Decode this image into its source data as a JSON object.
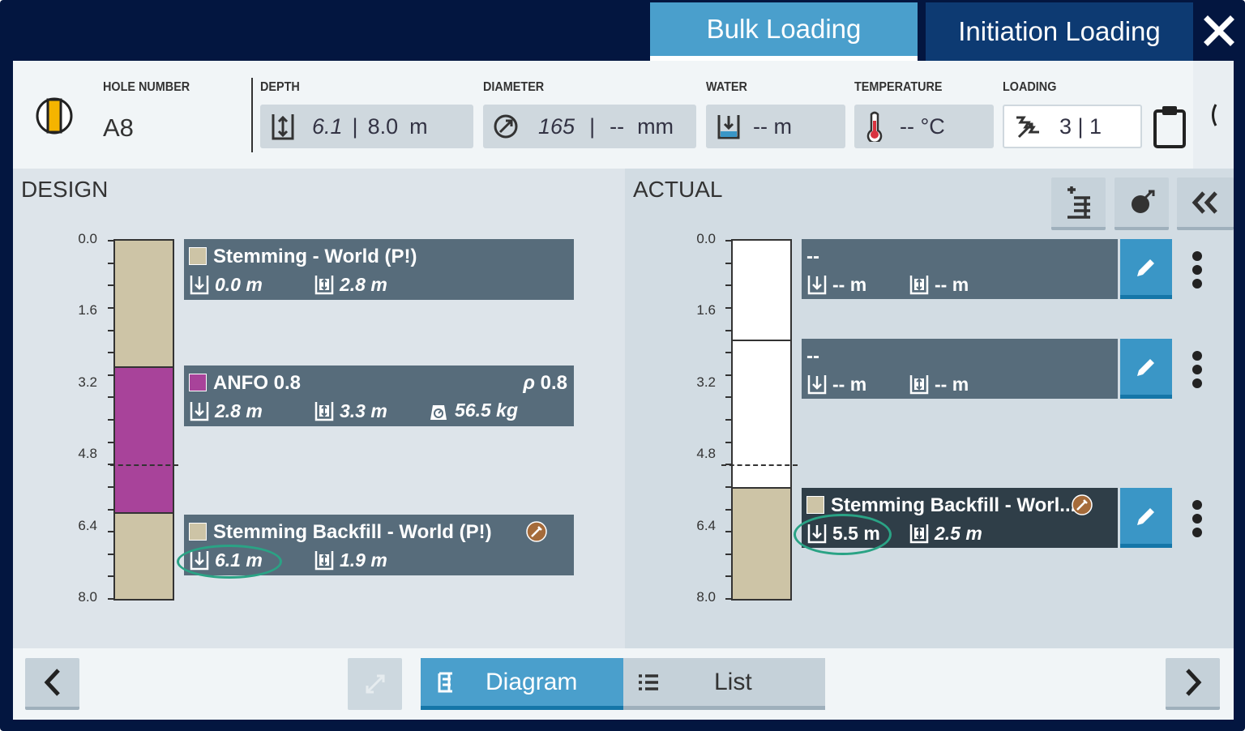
{
  "tabs": {
    "bulk": "Bulk Loading",
    "initiation": "Initiation Loading"
  },
  "header": {
    "hole_label": "HOLE NUMBER",
    "hole_value": "A8",
    "depth_label": "DEPTH",
    "depth_actual": "6.1",
    "depth_sep": "|",
    "depth_design": "8.0",
    "depth_unit": "m",
    "diameter_label": "DIAMETER",
    "diameter_actual": "165",
    "diameter_sep": "|",
    "diameter_design": "--",
    "diameter_unit": "mm",
    "water_label": "WATER",
    "water_value": "-- m",
    "temperature_label": "TEMPERATURE",
    "temperature_value": "-- °C",
    "loading_label": "LOADING",
    "loading_value": "3 | 1"
  },
  "design": {
    "title": "DESIGN",
    "ticks": [
      "0.0",
      "1.6",
      "3.2",
      "4.8",
      "6.4",
      "8.0"
    ],
    "decks": [
      {
        "name": "Stemming - World (P!)",
        "color": "#cdc4a6",
        "top": "0.0 m",
        "length": "2.8 m",
        "from": 0.0,
        "to": 2.8
      },
      {
        "name": "ANFO 0.8",
        "color": "#a8439a",
        "density_label": "ρ",
        "density": "0.8",
        "top": "2.8 m",
        "length": "3.3 m",
        "mass": "56.5 kg",
        "from": 2.8,
        "to": 6.1
      },
      {
        "name": "Stemming Backfill - World (P!)",
        "color": "#cdc4a6",
        "top": "6.1 m",
        "length": "1.9 m",
        "from": 6.1,
        "to": 8.0
      }
    ],
    "water_line": 4.8
  },
  "actual": {
    "title": "ACTUAL",
    "ticks": [
      "0.0",
      "1.6",
      "3.2",
      "4.8",
      "6.4",
      "8.0"
    ],
    "decks": [
      {
        "name": "--",
        "top": "-- m",
        "length": "-- m"
      },
      {
        "name": "--",
        "top": "-- m",
        "length": "-- m"
      },
      {
        "name": "Stemming Backfill - Worl...",
        "color": "#cdc4a6",
        "top": "5.5 m",
        "length": "2.5 m",
        "from": 5.5,
        "to": 8.0
      }
    ],
    "divider": 2.2,
    "water_line": 4.8
  },
  "footer": {
    "diagram": "Diagram",
    "list": "List"
  },
  "colors": {
    "accent": "#4a9fcc",
    "navy": "#031640",
    "card": "#576c7b",
    "highlight": "#2aa385"
  }
}
